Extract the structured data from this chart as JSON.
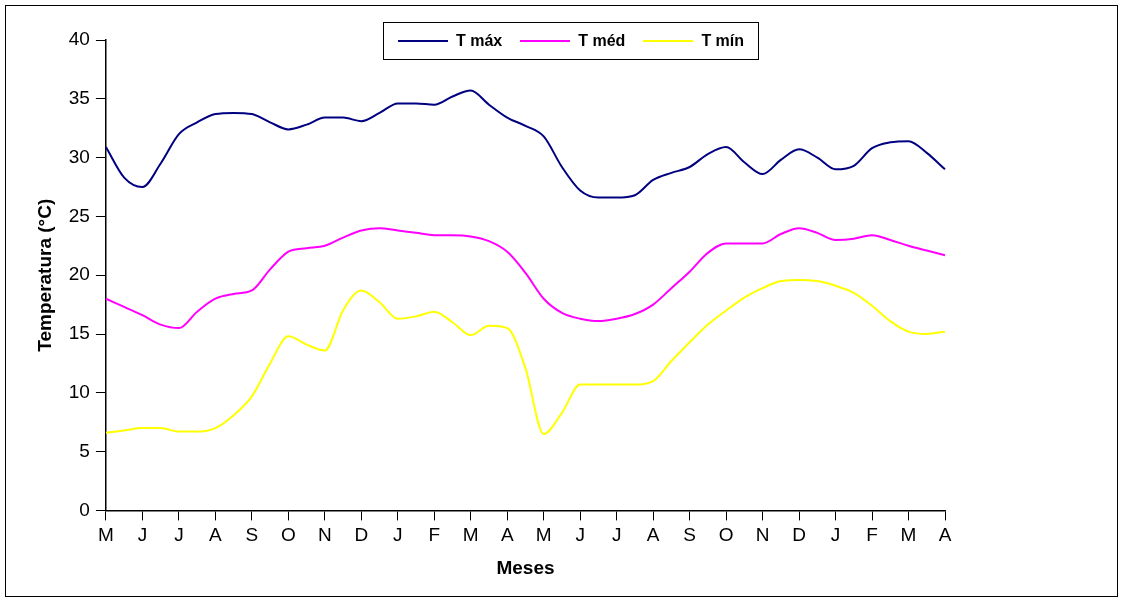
{
  "chart_data": {
    "type": "line",
    "xlabel": "Meses",
    "ylabel": "Temperatura (°C)",
    "categories": [
      "M",
      null,
      "J",
      null,
      "J",
      null,
      "A",
      null,
      "S",
      null,
      "O",
      null,
      "N",
      null,
      "D",
      null,
      "J",
      null,
      "F",
      null,
      "M",
      null,
      "A",
      null,
      "M",
      null,
      "J",
      null,
      "J",
      null,
      "A",
      null,
      "S",
      null,
      "O",
      null,
      "N",
      null,
      "D",
      null,
      "J",
      null,
      "F",
      null,
      "M",
      null,
      "A"
    ],
    "series": [
      {
        "name": "T máx",
        "color": "#000080",
        "values": [
          30.9,
          28.3,
          27.5,
          29.5,
          32.0,
          33.0,
          33.7,
          33.8,
          33.7,
          33.0,
          32.4,
          32.8,
          33.4,
          33.4,
          33.1,
          33.8,
          34.6,
          34.6,
          34.5,
          35.2,
          35.7,
          34.5,
          33.4,
          32.7,
          31.8,
          29.2,
          27.2,
          26.6,
          26.6,
          26.8,
          28.1,
          28.7,
          29.2,
          30.3,
          30.9,
          29.6,
          28.6,
          29.8,
          30.7,
          30.0,
          29.0,
          29.3,
          30.8,
          31.3,
          31.4,
          30.4,
          29.0
        ]
      },
      {
        "name": "T méd",
        "color": "#ff00ff",
        "values": [
          18.0,
          17.3,
          16.6,
          15.8,
          15.5,
          16.9,
          18.0,
          18.4,
          18.7,
          20.5,
          22.0,
          22.3,
          22.5,
          23.2,
          23.8,
          24.0,
          23.8,
          23.6,
          23.4,
          23.4,
          23.3,
          22.9,
          22.0,
          20.2,
          18.0,
          16.8,
          16.3,
          16.1,
          16.3,
          16.7,
          17.5,
          18.9,
          20.3,
          21.9,
          22.7,
          22.7,
          22.7,
          23.5,
          24.0,
          23.6,
          23.0,
          23.1,
          23.4,
          23.0,
          22.5,
          22.1,
          21.7
        ]
      },
      {
        "name": "T mín",
        "color": "#ffff00",
        "values": [
          6.6,
          6.8,
          7.0,
          7.0,
          6.7,
          6.7,
          7.0,
          8.1,
          9.7,
          12.5,
          14.8,
          14.1,
          13.6,
          17.0,
          18.7,
          17.7,
          16.3,
          16.5,
          16.9,
          16.0,
          14.9,
          15.7,
          15.5,
          12.1,
          6.5,
          8.3,
          10.7,
          10.7,
          10.7,
          10.7,
          11.0,
          12.7,
          14.3,
          15.8,
          17.0,
          18.1,
          18.9,
          19.5,
          19.6,
          19.5,
          19.1,
          18.5,
          17.4,
          16.1,
          15.2,
          15.0,
          15.2
        ]
      }
    ],
    "ylim": [
      0,
      40
    ],
    "yticks": [
      0,
      5,
      10,
      15,
      20,
      25,
      30,
      35,
      40
    ],
    "grid": false,
    "legend": "top",
    "marker": "none",
    "line_style": "solid"
  }
}
